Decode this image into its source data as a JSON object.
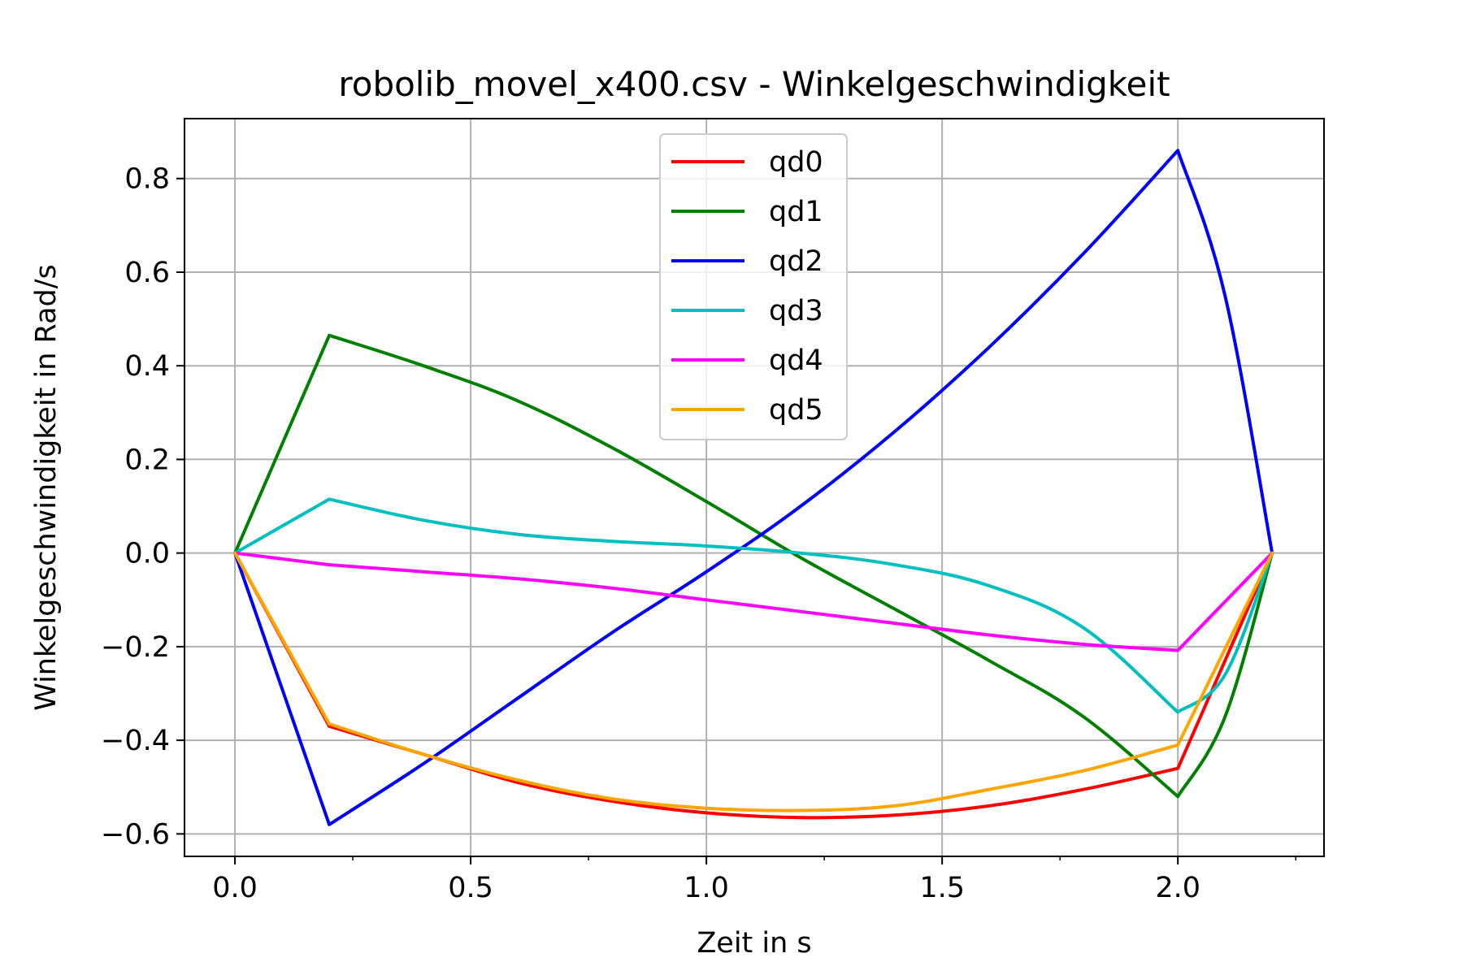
{
  "chart_data": {
    "type": "line",
    "title": "robolib_movel_x400.csv - Winkelgeschwindigkeit",
    "xlabel": "Zeit in s",
    "ylabel": "Winkelgeschwindigkeit in Rad/s",
    "xlim": [
      -0.107,
      2.31
    ],
    "ylim": [
      -0.648,
      0.928
    ],
    "x_major_ticks": [
      0.0,
      0.5,
      1.0,
      1.5,
      2.0
    ],
    "x_tick_labels": [
      "0.0",
      "0.5",
      "1.0",
      "1.5",
      "2.0"
    ],
    "x_minor_ticks": [
      0.25,
      0.75,
      1.25,
      1.75,
      2.25
    ],
    "y_ticks": [
      0.8,
      0.6,
      0.4,
      0.2,
      0.0,
      -0.2,
      -0.4,
      -0.6
    ],
    "y_tick_labels": [
      "0.8",
      "0.6",
      "0.4",
      "0.2",
      "0.0",
      "−0.2",
      "−0.4",
      "−0.6"
    ],
    "grid": true,
    "legend_position": "top-center",
    "series": [
      {
        "name": "qd0",
        "color": "#ff0000",
        "x": [
          0.0,
          0.2,
          0.4,
          0.6,
          0.8,
          1.0,
          1.2,
          1.4,
          1.6,
          1.8,
          2.0,
          2.2
        ],
        "y": [
          0.0,
          -0.37,
          -0.43,
          -0.49,
          -0.53,
          -0.555,
          -0.565,
          -0.56,
          -0.54,
          -0.505,
          -0.46,
          0.0
        ]
      },
      {
        "name": "qd1",
        "color": "#008000",
        "x": [
          0.0,
          0.2,
          0.4,
          0.6,
          0.8,
          1.0,
          1.2,
          1.4,
          1.6,
          1.8,
          2.0,
          2.1,
          2.2
        ],
        "y": [
          0.0,
          0.465,
          0.4,
          0.325,
          0.225,
          0.11,
          -0.01,
          -0.12,
          -0.23,
          -0.35,
          -0.52,
          -0.35,
          0.0
        ]
      },
      {
        "name": "qd2",
        "color": "#0000ff",
        "x": [
          0.0,
          0.2,
          0.4,
          0.6,
          0.8,
          1.0,
          1.2,
          1.4,
          1.6,
          1.8,
          2.0,
          2.1,
          2.2
        ],
        "y": [
          0.0,
          -0.58,
          -0.45,
          -0.31,
          -0.17,
          -0.04,
          0.1,
          0.26,
          0.44,
          0.64,
          0.86,
          0.55,
          0.0
        ]
      },
      {
        "name": "qd3",
        "color": "#00bfbf",
        "x": [
          0.0,
          0.2,
          0.4,
          0.6,
          0.8,
          1.0,
          1.2,
          1.4,
          1.6,
          1.8,
          2.0,
          2.1,
          2.2
        ],
        "y": [
          0.0,
          0.115,
          0.07,
          0.04,
          0.025,
          0.015,
          0.0,
          -0.025,
          -0.07,
          -0.16,
          -0.34,
          -0.26,
          0.0
        ]
      },
      {
        "name": "qd4",
        "color": "#ff00ff",
        "x": [
          0.0,
          0.2,
          0.4,
          0.6,
          0.8,
          1.0,
          1.2,
          1.4,
          1.6,
          1.8,
          2.0,
          2.2
        ],
        "y": [
          0.0,
          -0.025,
          -0.04,
          -0.055,
          -0.075,
          -0.1,
          -0.125,
          -0.15,
          -0.175,
          -0.195,
          -0.208,
          0.0
        ]
      },
      {
        "name": "qd5",
        "color": "#ffa500",
        "x": [
          0.0,
          0.2,
          0.4,
          0.6,
          0.8,
          1.0,
          1.2,
          1.4,
          1.6,
          1.8,
          2.0,
          2.2
        ],
        "y": [
          0.0,
          -0.365,
          -0.43,
          -0.485,
          -0.525,
          -0.545,
          -0.55,
          -0.54,
          -0.505,
          -0.465,
          -0.41,
          0.0
        ]
      }
    ]
  }
}
